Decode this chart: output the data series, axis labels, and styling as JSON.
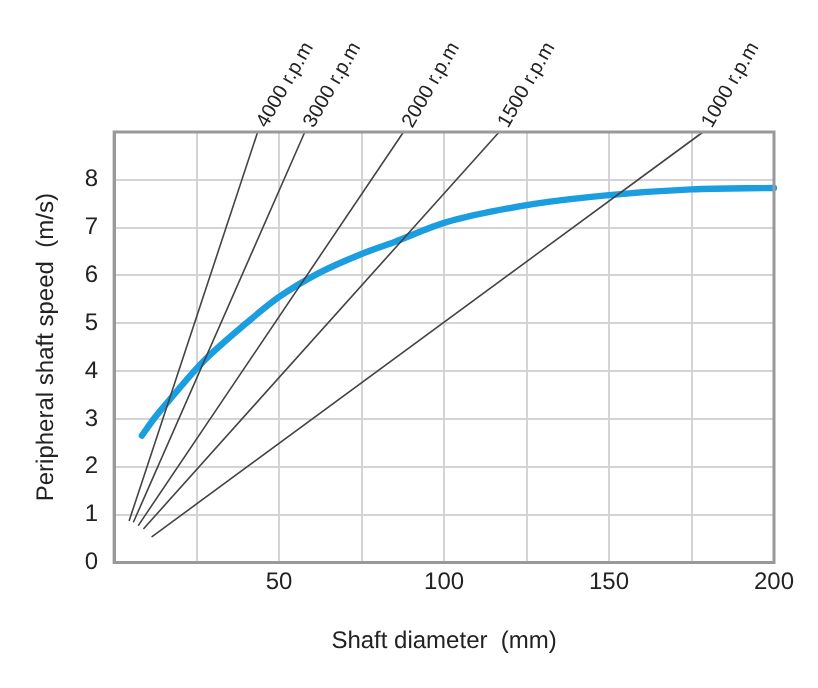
{
  "chart_data": {
    "type": "line",
    "xlabel": "Shaft diameter  (mm)",
    "ylabel": "Peripheral shaft speed  (m/s)",
    "xlim": [
      0,
      200
    ],
    "xticks": [
      {
        "value": 25,
        "label": null
      },
      50,
      {
        "value": 75,
        "label": null
      },
      100,
      {
        "value": 125,
        "label": null
      },
      150,
      {
        "value": 175,
        "label": null
      },
      200
    ],
    "ylim": [
      0,
      9
    ],
    "yticks": [
      0,
      1,
      2,
      3,
      4,
      5,
      6,
      7,
      8
    ],
    "grid": true,
    "legend": false,
    "marker": "none",
    "line_style": "solid",
    "series": [
      {
        "name": "4000 r.p.m",
        "color": "#444444",
        "x": [
          4.6,
          43.5
        ],
        "values": [
          0.88,
          9
        ]
      },
      {
        "name": "3000 r.p.m",
        "color": "#444444",
        "x": [
          5.9,
          57.8
        ],
        "values": [
          0.85,
          9
        ]
      },
      {
        "name": "2000 r.p.m",
        "color": "#444444",
        "x": [
          7.4,
          87.7
        ],
        "values": [
          0.78,
          9
        ]
      },
      {
        "name": "1500 r.p.m",
        "color": "#444444",
        "x": [
          9,
          116.7
        ],
        "values": [
          0.71,
          9
        ]
      },
      {
        "name": "1000 r.p.m",
        "color": "#444444",
        "x": [
          11.5,
          178.5
        ],
        "values": [
          0.54,
          9
        ]
      },
      {
        "color": "#1a9ee0",
        "x": [
          8.4,
          12,
          16.8,
          27,
          40,
          50,
          62,
          75,
          85,
          100,
          125,
          150,
          175,
          200
        ],
        "values": [
          2.65,
          3.0,
          3.4,
          4.2,
          5.0,
          5.55,
          6.05,
          6.45,
          6.7,
          7.1,
          7.47,
          7.68,
          7.8,
          7.83
        ]
      }
    ]
  }
}
